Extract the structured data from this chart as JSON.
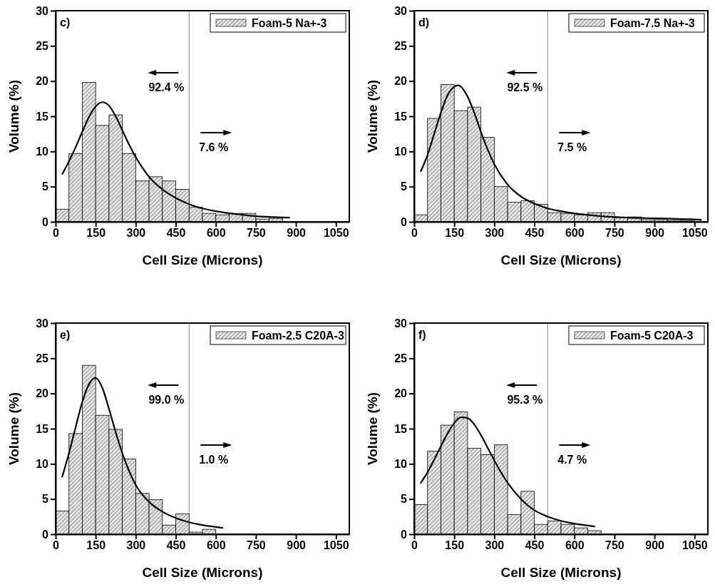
{
  "chart_data": [
    {
      "type": "histogram",
      "xlabel": "Cell Size (Microns)",
      "ylabel": "Volume (%)",
      "xlim": [
        0,
        1100
      ],
      "xticks": [
        0,
        150,
        300,
        450,
        600,
        750,
        900,
        1050
      ],
      "ylim": [
        0,
        30
      ],
      "yticks": [
        0,
        5,
        10,
        15,
        20,
        25,
        30
      ],
      "legend": "top right",
      "marker": "none",
      "line_style": "solid",
      "bins": [
        0,
        50,
        100,
        150,
        200,
        250,
        300,
        350,
        400,
        450,
        500,
        550,
        600,
        650,
        700,
        750,
        800,
        850
      ],
      "ref_lines": [
        {
          "axis": "x",
          "value": 500,
          "color": "#888888"
        }
      ],
      "annotations": [
        "c)",
        "92.4 %",
        "7.6 %"
      ],
      "series": [
        {
          "name": "Foam-5 Na+-3",
          "color": "#000000",
          "values": [
            1.8,
            9.7,
            19.8,
            13.7,
            15.2,
            9.7,
            5.8,
            6.4,
            5.8,
            4.6,
            2.1,
            1.2,
            1.0,
            1.2,
            1.2,
            0.4,
            0.5
          ]
        },
        {
          "type": "line",
          "color": "#000000",
          "x": [
            25,
            50,
            75,
            100,
            125,
            150,
            175,
            200,
            225,
            250,
            275,
            300,
            325,
            350,
            400,
            450,
            500,
            550,
            600,
            650,
            700,
            750,
            800,
            875
          ],
          "values": [
            6.8,
            8.6,
            10.6,
            12.8,
            14.9,
            16.4,
            17.0,
            16.5,
            15.0,
            13.0,
            11.0,
            9.2,
            7.7,
            6.4,
            4.6,
            3.4,
            2.5,
            1.9,
            1.5,
            1.2,
            1.0,
            0.8,
            0.7,
            0.6
          ]
        }
      ]
    },
    {
      "type": "histogram",
      "xlabel": "Cell Size (Microns)",
      "ylabel": "Volume (%)",
      "xlim": [
        0,
        1100
      ],
      "xticks": [
        0,
        150,
        300,
        450,
        600,
        750,
        900,
        1050
      ],
      "ylim": [
        0,
        30
      ],
      "yticks": [
        0,
        5,
        10,
        15,
        20,
        25,
        30
      ],
      "legend": "top right",
      "marker": "none",
      "line_style": "solid",
      "bins": [
        0,
        50,
        100,
        150,
        200,
        250,
        300,
        350,
        400,
        450,
        500,
        550,
        600,
        650,
        700,
        750,
        800,
        850,
        900,
        950,
        1000,
        1050
      ],
      "ref_lines": [
        {
          "axis": "x",
          "value": 500,
          "color": "#888888"
        }
      ],
      "annotations": [
        "d)",
        "92.5 %",
        "7.5 %"
      ],
      "series": [
        {
          "name": "Foam-7.5 Na+-3",
          "color": "#000000",
          "values": [
            1.0,
            14.7,
            19.5,
            15.8,
            16.3,
            12.0,
            5.0,
            2.8,
            3.0,
            2.5,
            1.3,
            1.2,
            1.0,
            1.3,
            1.3,
            0.6,
            0.7,
            0.3,
            0.3,
            0.2,
            0.2
          ]
        },
        {
          "type": "line",
          "color": "#000000",
          "x": [
            25,
            50,
            75,
            100,
            125,
            150,
            165,
            200,
            225,
            250,
            275,
            300,
            350,
            400,
            450,
            500,
            550,
            600,
            700,
            800,
            900,
            1000,
            1075
          ],
          "values": [
            7.2,
            9.5,
            12.5,
            15.5,
            18.0,
            19.2,
            19.4,
            17.8,
            15.5,
            12.8,
            10.3,
            8.2,
            5.3,
            3.6,
            2.6,
            1.9,
            1.5,
            1.2,
            0.8,
            0.6,
            0.5,
            0.4,
            0.3
          ]
        }
      ]
    },
    {
      "type": "histogram",
      "xlabel": "Cell Size (Microns)",
      "ylabel": "Volume (%)",
      "xlim": [
        0,
        1100
      ],
      "xticks": [
        0,
        150,
        300,
        450,
        600,
        750,
        900,
        1050
      ],
      "ylim": [
        0,
        30
      ],
      "yticks": [
        0,
        5,
        10,
        15,
        20,
        25,
        30
      ],
      "legend": "top right",
      "marker": "none",
      "line_style": "solid",
      "bins": [
        0,
        50,
        100,
        150,
        200,
        250,
        300,
        350,
        400,
        450,
        500,
        550,
        600
      ],
      "ref_lines": [
        {
          "axis": "x",
          "value": 500,
          "color": "#888888"
        }
      ],
      "annotations": [
        "e)",
        "99.0 %",
        "1.0 %"
      ],
      "series": [
        {
          "name": "Foam-2.5 C20A-3",
          "color": "#000000",
          "values": [
            3.3,
            14.3,
            24.0,
            16.9,
            14.9,
            10.7,
            5.8,
            4.9,
            1.3,
            2.9,
            0.3,
            0.7
          ]
        },
        {
          "type": "line",
          "color": "#000000",
          "x": [
            25,
            50,
            75,
            100,
            125,
            150,
            175,
            200,
            225,
            250,
            275,
            300,
            350,
            400,
            450,
            500,
            550,
            625
          ],
          "values": [
            8.2,
            11.5,
            15.2,
            18.8,
            21.3,
            22.2,
            20.8,
            17.8,
            14.5,
            11.5,
            9.0,
            7.0,
            4.6,
            3.2,
            2.3,
            1.7,
            1.3,
            0.9
          ]
        }
      ]
    },
    {
      "type": "histogram",
      "xlabel": "Cell Size (Microns)",
      "ylabel": "Volume (%)",
      "xlim": [
        0,
        1100
      ],
      "xticks": [
        0,
        150,
        300,
        450,
        600,
        750,
        900,
        1050
      ],
      "ylim": [
        0,
        30
      ],
      "yticks": [
        0,
        5,
        10,
        15,
        20,
        25,
        30
      ],
      "legend": "top right",
      "marker": "none",
      "line_style": "solid",
      "bins": [
        0,
        50,
        100,
        150,
        200,
        250,
        300,
        350,
        400,
        450,
        500,
        550,
        600,
        650,
        700
      ],
      "ref_lines": [
        {
          "axis": "x",
          "value": 500,
          "color": "#888888"
        }
      ],
      "annotations": [
        "f)",
        "95.3 %",
        "4.7 %"
      ],
      "series": [
        {
          "name": "Foam-5 C20A-3",
          "color": "#000000",
          "values": [
            4.2,
            11.8,
            15.5,
            17.4,
            12.2,
            11.3,
            12.7,
            2.8,
            6.1,
            1.4,
            1.9,
            1.4,
            0.9,
            0.5
          ]
        },
        {
          "type": "line",
          "color": "#000000",
          "x": [
            25,
            50,
            75,
            100,
            125,
            150,
            175,
            200,
            225,
            250,
            275,
            300,
            325,
            350,
            400,
            450,
            500,
            550,
            600,
            675
          ],
          "values": [
            7.3,
            8.8,
            10.6,
            12.5,
            14.3,
            15.8,
            16.6,
            16.5,
            15.6,
            14.1,
            12.3,
            10.5,
            8.8,
            7.3,
            5.0,
            3.4,
            2.5,
            1.9,
            1.5,
            1.1
          ]
        }
      ]
    }
  ]
}
